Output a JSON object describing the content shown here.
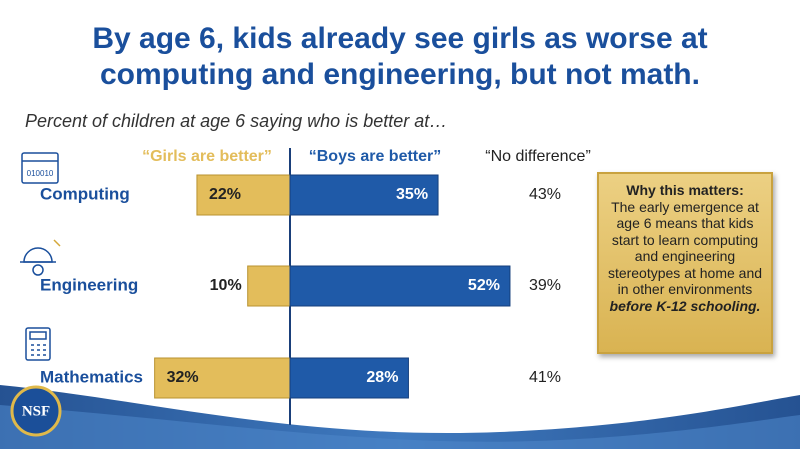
{
  "chart_data": {
    "type": "diverging_bar",
    "title": [
      "By age 6, kids already see girls as worse at",
      "computing and engineering, but not math."
    ],
    "subtitle": "Percent of children at age 6 saying who is better at…",
    "categories": [
      "Computing",
      "Engineering",
      "Mathematics"
    ],
    "series": [
      {
        "name": "“Girls are better”",
        "color": "#e3bd5b",
        "values": [
          22,
          10,
          32
        ],
        "value_labels": [
          "22%",
          "10%",
          "32%"
        ]
      },
      {
        "name": "“Boys are better”",
        "color": "#1f5aa8",
        "values": [
          35,
          52,
          28
        ],
        "value_labels": [
          "35%",
          "52%",
          "28%"
        ]
      },
      {
        "name": "“No difference”",
        "color": "#222222",
        "values": [
          43,
          39,
          41
        ],
        "value_labels": [
          "43%",
          "39%",
          "41%"
        ]
      }
    ],
    "note": {
      "title": "Why this matters:",
      "body": "The early emergence at age 6 means that kids start to learn computing and engineering stereotypes at home and in other environments",
      "emphasis": "before K-12 schooling."
    },
    "logo": "NSF"
  }
}
